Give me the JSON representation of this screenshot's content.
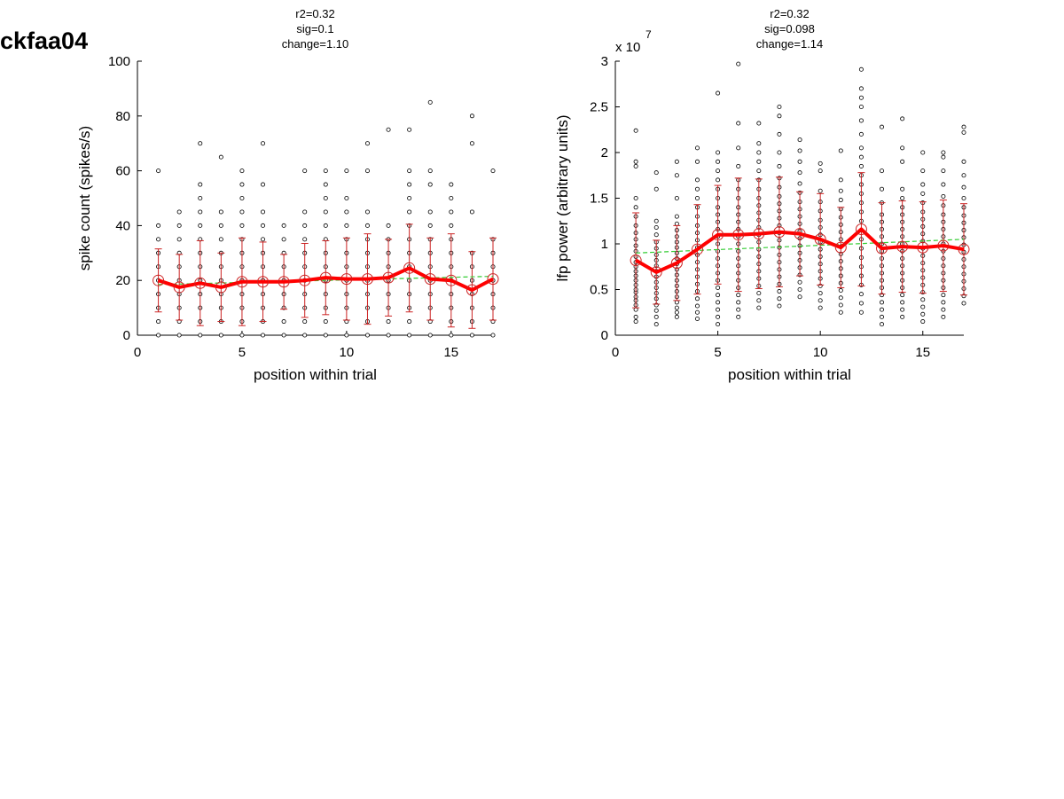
{
  "figure_label": "ckfaa04",
  "chart_data": [
    {
      "type": "scatter",
      "stats": [
        "r2=0.32",
        "sig=0.1",
        "change=1.10"
      ],
      "xlabel": "position within trial",
      "ylabel": "spike count (spikes/s)",
      "exponent_label": "",
      "xlim": [
        0,
        17
      ],
      "ylim": [
        0,
        100
      ],
      "xticks": [
        0,
        5,
        10,
        15
      ],
      "yticks": [
        0,
        20,
        40,
        60,
        80,
        100
      ],
      "xtick_labels": [
        "0",
        "5",
        "10",
        "15"
      ],
      "ytick_labels": [
        "0",
        "20",
        "40",
        "60",
        "80",
        "100"
      ],
      "colors": {
        "points": "#000000",
        "mean": "#ff0000",
        "error": "#cc2222",
        "fit": "#33cc33"
      },
      "trials": [
        {
          "x": 1,
          "values": [
            0,
            5,
            10,
            15,
            20,
            25,
            30,
            35,
            40,
            60
          ]
        },
        {
          "x": 2,
          "values": [
            0,
            5,
            10,
            15,
            20,
            25,
            30,
            35,
            40,
            45
          ]
        },
        {
          "x": 3,
          "values": [
            0,
            5,
            10,
            15,
            20,
            25,
            30,
            35,
            40,
            45,
            50,
            55,
            70
          ]
        },
        {
          "x": 4,
          "values": [
            0,
            5,
            10,
            15,
            20,
            25,
            30,
            35,
            40,
            45,
            65
          ]
        },
        {
          "x": 5,
          "values": [
            0,
            5,
            10,
            15,
            20,
            25,
            30,
            35,
            40,
            45,
            50,
            55,
            60
          ]
        },
        {
          "x": 6,
          "values": [
            0,
            5,
            10,
            15,
            20,
            25,
            30,
            35,
            40,
            45,
            55,
            70
          ]
        },
        {
          "x": 7,
          "values": [
            0,
            5,
            10,
            15,
            20,
            25,
            30,
            35,
            40
          ]
        },
        {
          "x": 8,
          "values": [
            0,
            5,
            10,
            15,
            20,
            25,
            30,
            35,
            40,
            45,
            60
          ]
        },
        {
          "x": 9,
          "values": [
            0,
            5,
            10,
            15,
            20,
            25,
            30,
            35,
            40,
            45,
            50,
            55,
            60
          ]
        },
        {
          "x": 10,
          "values": [
            0,
            5,
            10,
            15,
            20,
            25,
            30,
            35,
            40,
            45,
            50,
            60
          ]
        },
        {
          "x": 11,
          "values": [
            0,
            5,
            10,
            15,
            20,
            25,
            30,
            35,
            40,
            45,
            60,
            70
          ]
        },
        {
          "x": 12,
          "values": [
            0,
            5,
            10,
            15,
            20,
            25,
            30,
            35,
            40,
            75
          ]
        },
        {
          "x": 13,
          "values": [
            0,
            5,
            10,
            15,
            20,
            25,
            30,
            35,
            40,
            45,
            50,
            55,
            60,
            75
          ]
        },
        {
          "x": 14,
          "values": [
            0,
            5,
            10,
            15,
            20,
            25,
            30,
            35,
            40,
            45,
            55,
            60,
            85
          ]
        },
        {
          "x": 15,
          "values": [
            0,
            5,
            10,
            15,
            20,
            25,
            30,
            35,
            40,
            45,
            50,
            55
          ]
        },
        {
          "x": 16,
          "values": [
            0,
            5,
            10,
            15,
            20,
            25,
            30,
            45,
            70,
            80
          ]
        },
        {
          "x": 17,
          "values": [
            0,
            5,
            10,
            15,
            20,
            25,
            30,
            35,
            60
          ]
        }
      ],
      "mean": {
        "x": [
          1,
          2,
          3,
          4,
          5,
          6,
          7,
          8,
          9,
          10,
          11,
          12,
          13,
          14,
          15,
          16,
          17
        ],
        "y": [
          20,
          17.5,
          19,
          17.5,
          19.5,
          19.5,
          19.5,
          20,
          21,
          20.5,
          20.5,
          21,
          24.5,
          20.5,
          20,
          16.5,
          20.5
        ]
      },
      "error": [
        11.5,
        12,
        15.5,
        12.5,
        16,
        14.5,
        10,
        13.5,
        13.5,
        15,
        16.5,
        14,
        16,
        15,
        17,
        14,
        15
      ],
      "fit": {
        "x": [
          1,
          17
        ],
        "y": [
          18.5,
          21.5
        ]
      }
    },
    {
      "type": "scatter",
      "stats": [
        "r2=0.32",
        "sig=0.098",
        "change=1.14"
      ],
      "xlabel": "position within trial",
      "ylabel": "lfp power (arbitrary units)",
      "exponent_label": "x 10",
      "exponent_power": "7",
      "xlim": [
        0,
        17
      ],
      "ylim": [
        0,
        3
      ],
      "xticks": [
        0,
        5,
        10,
        15
      ],
      "yticks": [
        0,
        0.5,
        1,
        1.5,
        2,
        2.5,
        3
      ],
      "xtick_labels": [
        "0",
        "5",
        "10",
        "15"
      ],
      "ytick_labels": [
        "0",
        "0.5",
        "1",
        "1.5",
        "2",
        "2.5",
        "3"
      ],
      "colors": {
        "points": "#000000",
        "mean": "#ff0000",
        "error": "#cc2222",
        "fit": "#33cc33"
      },
      "trials": [
        {
          "x": 1,
          "values": [
            0.15,
            0.2,
            0.28,
            0.33,
            0.38,
            0.42,
            0.47,
            0.5,
            0.55,
            0.6,
            0.65,
            0.7,
            0.75,
            0.8,
            0.86,
            0.92,
            0.98,
            1.05,
            1.12,
            1.2,
            1.3,
            1.4,
            1.5,
            1.85,
            1.9,
            2.24
          ]
        },
        {
          "x": 2,
          "values": [
            0.12,
            0.2,
            0.27,
            0.33,
            0.4,
            0.46,
            0.52,
            0.58,
            0.64,
            0.7,
            0.76,
            0.82,
            0.88,
            0.95,
            1.02,
            1.1,
            1.18,
            1.25,
            1.6,
            1.78
          ]
        },
        {
          "x": 3,
          "values": [
            0.2,
            0.25,
            0.3,
            0.36,
            0.42,
            0.48,
            0.54,
            0.6,
            0.66,
            0.72,
            0.78,
            0.84,
            0.9,
            0.96,
            1.02,
            1.08,
            1.15,
            1.22,
            1.3,
            1.5,
            1.75,
            1.9
          ]
        },
        {
          "x": 4,
          "values": [
            0.18,
            0.25,
            0.32,
            0.4,
            0.48,
            0.56,
            0.64,
            0.72,
            0.8,
            0.88,
            0.96,
            1.04,
            1.12,
            1.2,
            1.3,
            1.4,
            1.5,
            1.6,
            1.7,
            1.9,
            2.05
          ]
        },
        {
          "x": 5,
          "values": [
            0.12,
            0.2,
            0.28,
            0.36,
            0.44,
            0.52,
            0.6,
            0.68,
            0.76,
            0.84,
            0.92,
            1.0,
            1.08,
            1.16,
            1.24,
            1.32,
            1.4,
            1.5,
            1.6,
            1.7,
            1.8,
            1.9,
            2.0,
            2.65
          ]
        },
        {
          "x": 6,
          "values": [
            0.2,
            0.28,
            0.36,
            0.44,
            0.52,
            0.6,
            0.68,
            0.76,
            0.84,
            0.92,
            1.0,
            1.08,
            1.16,
            1.24,
            1.32,
            1.4,
            1.5,
            1.6,
            1.7,
            1.85,
            2.05,
            2.32,
            2.97
          ]
        },
        {
          "x": 7,
          "values": [
            0.3,
            0.38,
            0.46,
            0.54,
            0.62,
            0.7,
            0.78,
            0.86,
            0.94,
            1.02,
            1.1,
            1.18,
            1.26,
            1.34,
            1.42,
            1.5,
            1.6,
            1.7,
            1.8,
            1.9,
            2.0,
            2.1,
            2.32
          ]
        },
        {
          "x": 8,
          "values": [
            0.32,
            0.4,
            0.48,
            0.56,
            0.64,
            0.72,
            0.8,
            0.88,
            0.96,
            1.04,
            1.12,
            1.2,
            1.28,
            1.36,
            1.44,
            1.52,
            1.62,
            1.72,
            1.85,
            2.0,
            2.2,
            2.4,
            2.5
          ]
        },
        {
          "x": 9,
          "values": [
            0.42,
            0.5,
            0.58,
            0.66,
            0.74,
            0.82,
            0.9,
            0.98,
            1.06,
            1.14,
            1.22,
            1.3,
            1.38,
            1.46,
            1.56,
            1.66,
            1.78,
            1.9,
            2.02,
            2.14
          ]
        },
        {
          "x": 10,
          "values": [
            0.3,
            0.38,
            0.46,
            0.54,
            0.62,
            0.7,
            0.78,
            0.86,
            0.94,
            1.02,
            1.1,
            1.18,
            1.26,
            1.36,
            1.46,
            1.58,
            1.8,
            1.88
          ]
        },
        {
          "x": 11,
          "values": [
            0.25,
            0.33,
            0.41,
            0.49,
            0.57,
            0.65,
            0.73,
            0.81,
            0.89,
            0.97,
            1.05,
            1.13,
            1.21,
            1.29,
            1.38,
            1.48,
            1.58,
            1.7,
            2.02
          ]
        },
        {
          "x": 12,
          "values": [
            0.25,
            0.35,
            0.45,
            0.55,
            0.65,
            0.75,
            0.85,
            0.95,
            1.05,
            1.15,
            1.25,
            1.35,
            1.45,
            1.55,
            1.65,
            1.75,
            1.85,
            1.95,
            2.05,
            2.2,
            2.35,
            2.5,
            2.6,
            2.7,
            2.91
          ]
        },
        {
          "x": 13,
          "values": [
            0.12,
            0.2,
            0.28,
            0.36,
            0.44,
            0.52,
            0.6,
            0.68,
            0.76,
            0.84,
            0.92,
            1.0,
            1.08,
            1.16,
            1.24,
            1.32,
            1.45,
            1.6,
            1.8,
            2.28
          ]
        },
        {
          "x": 14,
          "values": [
            0.2,
            0.28,
            0.36,
            0.44,
            0.52,
            0.6,
            0.68,
            0.76,
            0.84,
            0.92,
            1.0,
            1.08,
            1.16,
            1.24,
            1.32,
            1.4,
            1.5,
            1.6,
            1.9,
            2.05,
            2.37
          ]
        },
        {
          "x": 15,
          "values": [
            0.15,
            0.23,
            0.31,
            0.39,
            0.47,
            0.55,
            0.63,
            0.71,
            0.79,
            0.87,
            0.95,
            1.03,
            1.11,
            1.19,
            1.27,
            1.35,
            1.45,
            1.55,
            1.65,
            1.8,
            2.0
          ]
        },
        {
          "x": 16,
          "values": [
            0.2,
            0.28,
            0.36,
            0.44,
            0.52,
            0.6,
            0.68,
            0.76,
            0.84,
            0.92,
            1.0,
            1.08,
            1.16,
            1.24,
            1.32,
            1.42,
            1.52,
            1.65,
            1.8,
            1.95,
            2.0
          ]
        },
        {
          "x": 17,
          "values": [
            0.35,
            0.43,
            0.51,
            0.59,
            0.67,
            0.75,
            0.83,
            0.91,
            0.99,
            1.07,
            1.15,
            1.23,
            1.31,
            1.4,
            1.5,
            1.62,
            1.75,
            1.9,
            2.22,
            2.28
          ]
        }
      ],
      "mean": {
        "x": [
          1,
          2,
          3,
          4,
          5,
          6,
          7,
          8,
          9,
          10,
          11,
          12,
          13,
          14,
          15,
          16,
          17
        ],
        "y": [
          0.82,
          0.69,
          0.79,
          0.94,
          1.1,
          1.1,
          1.11,
          1.13,
          1.11,
          1.05,
          0.96,
          1.16,
          0.95,
          0.97,
          0.96,
          0.98,
          0.94
        ]
      },
      "error": [
        0.52,
        0.35,
        0.41,
        0.49,
        0.54,
        0.62,
        0.6,
        0.6,
        0.46,
        0.5,
        0.44,
        0.62,
        0.5,
        0.5,
        0.5,
        0.5,
        0.5
      ],
      "fit": {
        "x": [
          1,
          17
        ],
        "y": [
          0.9,
          1.05
        ]
      }
    }
  ]
}
